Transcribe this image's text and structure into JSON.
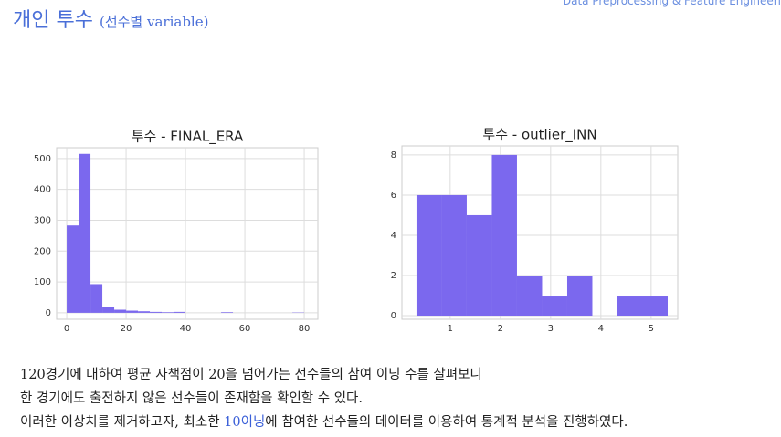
{
  "header": {
    "title": "개인 투수",
    "subtitle": "(선수별 variable)",
    "section": "Data Preprocessing & Feature Engineeri"
  },
  "chart_data": [
    {
      "type": "histogram",
      "title": "투수 - FINAL_ERA",
      "color": "#7b68ee",
      "grid": true,
      "bins": [
        0,
        4,
        8,
        12,
        16,
        20,
        24,
        28,
        32,
        36,
        40,
        44,
        48,
        52,
        56,
        60,
        64,
        68,
        72,
        76,
        80
      ],
      "values": [
        283,
        515,
        93,
        20,
        10,
        7,
        5,
        3,
        2,
        3,
        0,
        0,
        0,
        2,
        0,
        0,
        0,
        0,
        0,
        1
      ],
      "xlim": [
        -3.4,
        84.6
      ],
      "xticks": [
        0,
        20,
        40,
        60,
        80
      ],
      "ylim": [
        -21,
        535
      ],
      "yticks": [
        0,
        100,
        200,
        300,
        400,
        500
      ]
    },
    {
      "type": "histogram",
      "title": "투수 - outlier_INN",
      "color": "#7b68ee",
      "grid": true,
      "bins": [
        0.33,
        0.83,
        1.33,
        1.83,
        2.33,
        2.83,
        3.33,
        3.83,
        4.33,
        4.83,
        5.33
      ],
      "values": [
        6,
        6,
        5,
        8,
        2,
        1,
        2,
        0,
        1,
        1
      ],
      "xlim": [
        0.04,
        5.53
      ],
      "xticks": [
        1,
        2,
        3,
        4,
        5
      ],
      "ylim": [
        -0.18,
        8.45
      ],
      "yticks": [
        0,
        2,
        4,
        6,
        8
      ]
    }
  ],
  "body": {
    "line1": "120경기에 대하여 평균 자책점이 20을 넘어가는 선수들의 참여 이닝 수를 살펴보니",
    "line2": "한 경기에도 출전하지 않은 선수들이 존재함을 확인할 수 있다.",
    "line3a": "이러한 이상치를 제거하고자, 최소한 ",
    "line3b": "10이닝",
    "line3c": "에 참여한 선수들의 데이터를 이용하여 통계적 분석을 진행하였다."
  }
}
